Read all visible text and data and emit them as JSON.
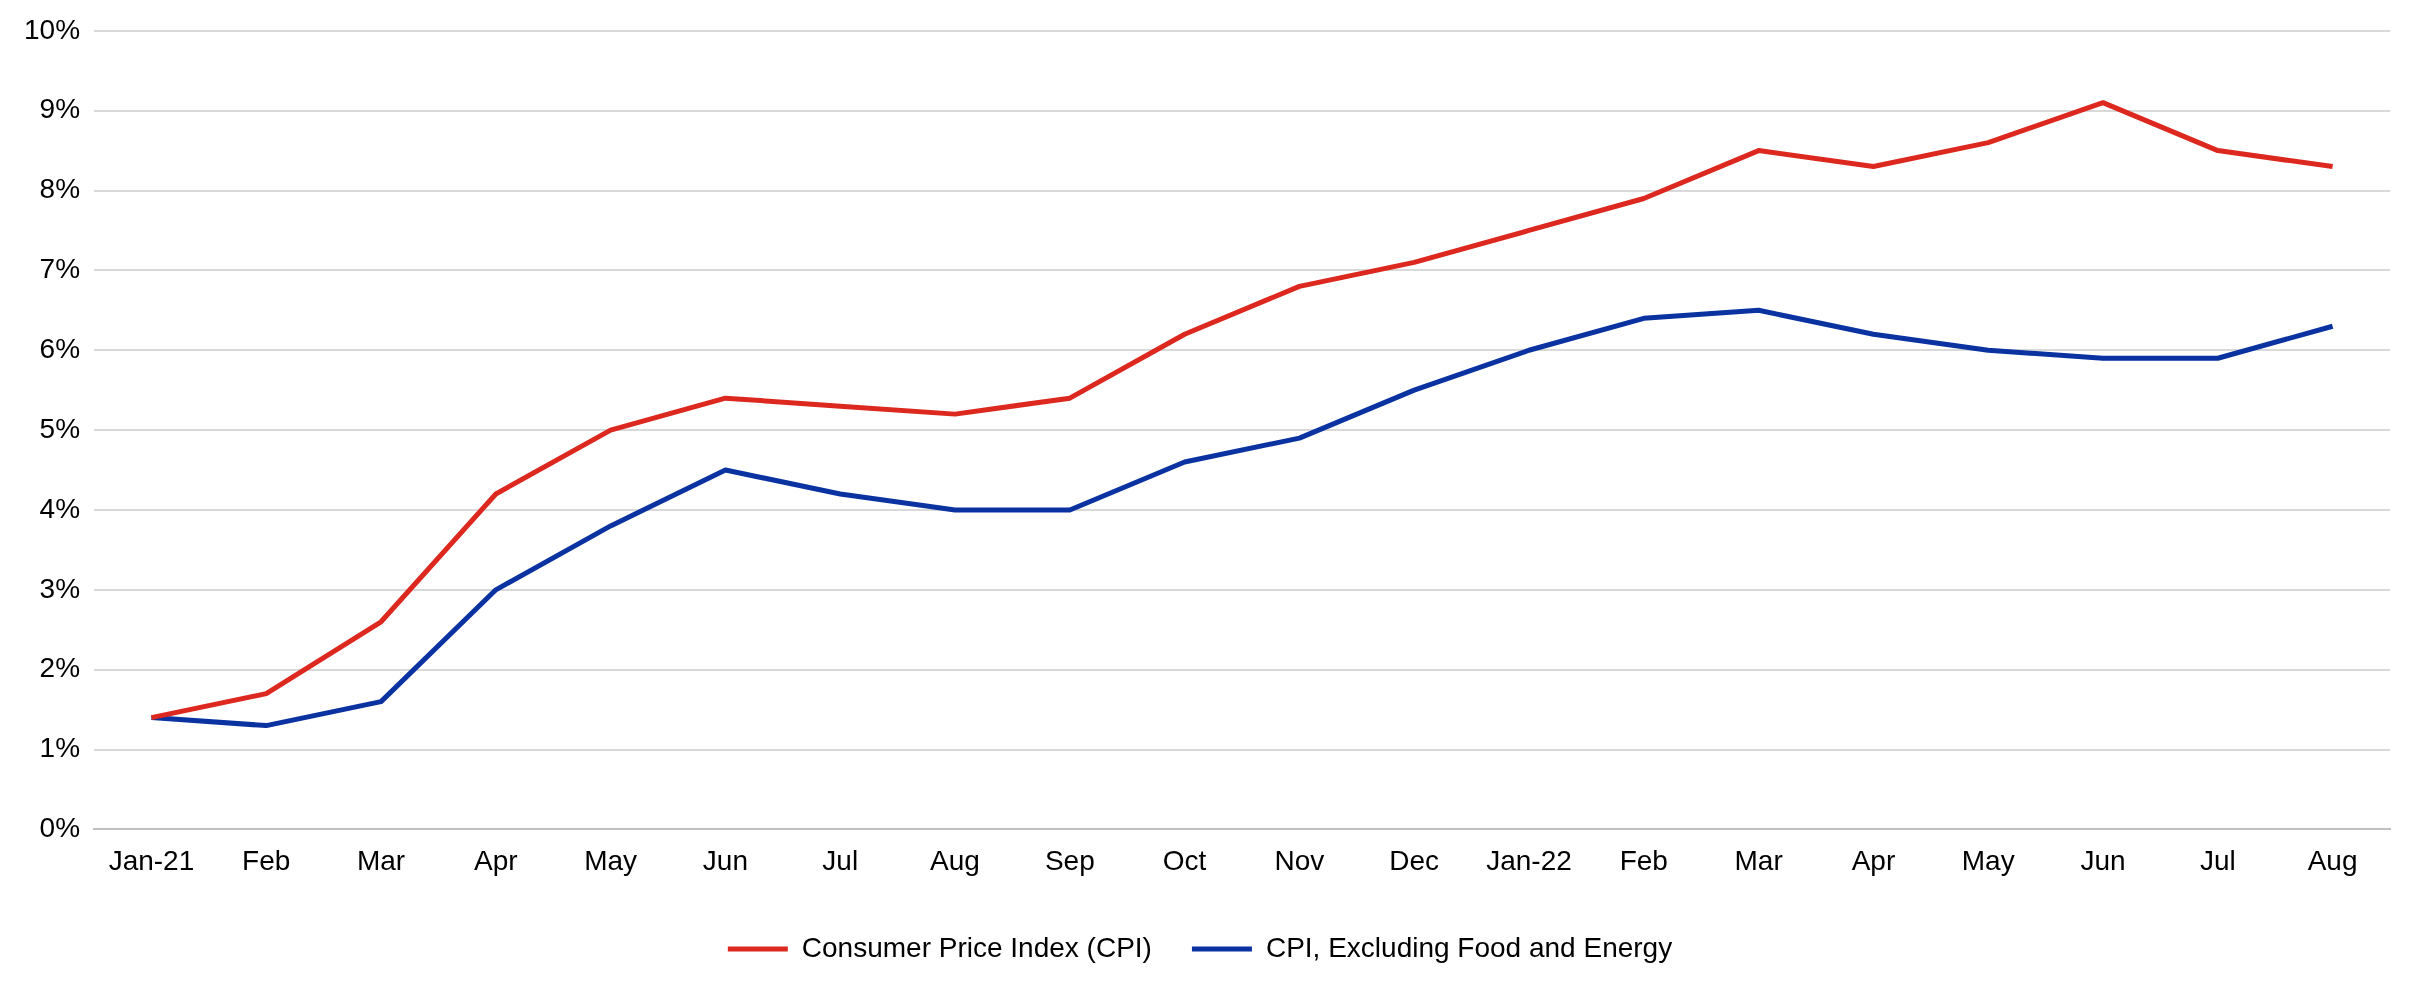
{
  "chart_data": {
    "type": "line",
    "categories": [
      "Jan-21",
      "Feb",
      "Mar",
      "Apr",
      "May",
      "Jun",
      "Jul",
      "Aug",
      "Sep",
      "Oct",
      "Nov",
      "Dec",
      "Jan-22",
      "Feb",
      "Mar",
      "Apr",
      "May",
      "Jun",
      "Jul",
      "Aug"
    ],
    "series": [
      {
        "name": "Consumer Price Index (CPI)",
        "color": "#dc281e",
        "values": [
          1.4,
          1.7,
          2.6,
          4.2,
          5.0,
          5.4,
          5.3,
          5.2,
          5.4,
          6.2,
          6.8,
          7.1,
          7.5,
          7.9,
          8.5,
          8.3,
          8.6,
          9.1,
          8.5,
          8.3
        ]
      },
      {
        "name": "CPI, Excluding Food and Energy",
        "color": "#0a32a0",
        "values": [
          1.4,
          1.3,
          1.6,
          3.0,
          3.8,
          4.5,
          4.2,
          4.0,
          4.0,
          4.6,
          4.9,
          5.5,
          6.0,
          6.4,
          6.5,
          6.2,
          6.0,
          5.9,
          5.9,
          6.3
        ]
      }
    ],
    "ylim": [
      0,
      10
    ],
    "yticks": [
      {
        "value": 0,
        "label": "0%"
      },
      {
        "value": 1,
        "label": "1%"
      },
      {
        "value": 2,
        "label": "2%"
      },
      {
        "value": 3,
        "label": "3%"
      },
      {
        "value": 4,
        "label": "4%"
      },
      {
        "value": 5,
        "label": "5%"
      },
      {
        "value": 6,
        "label": "6%"
      },
      {
        "value": 7,
        "label": "7%"
      },
      {
        "value": 8,
        "label": "8%"
      },
      {
        "value": 9,
        "label": "9%"
      },
      {
        "value": 10,
        "label": "10%"
      }
    ],
    "grid": "y",
    "legend": "bottom",
    "marker": "none",
    "line_style": "solid"
  }
}
